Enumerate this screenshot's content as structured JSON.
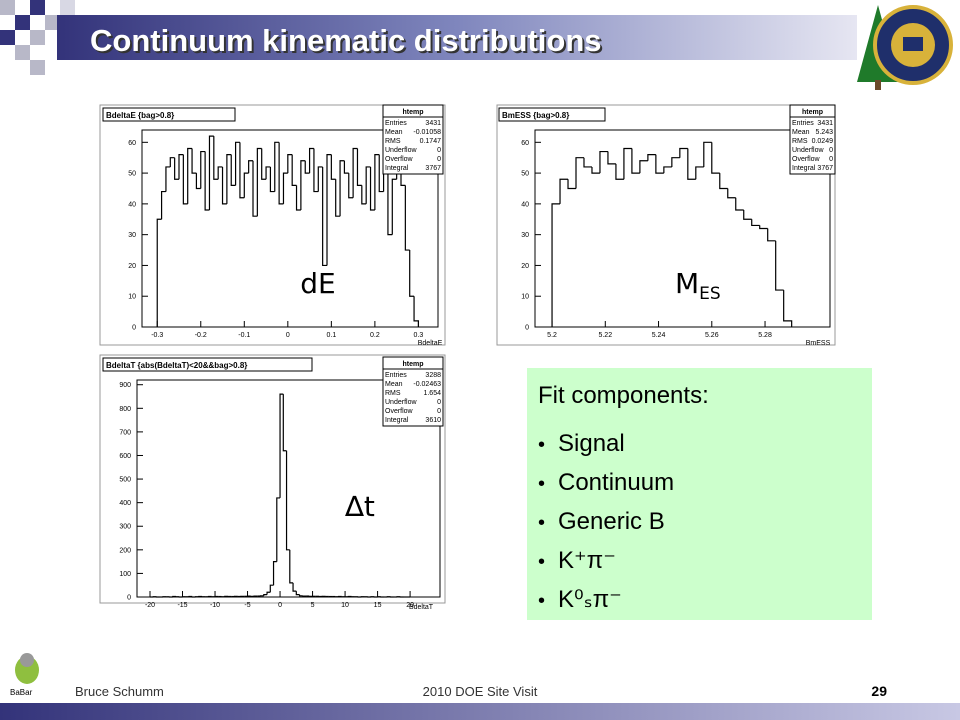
{
  "slide": {
    "title": "Continuum kinematic distributions",
    "logo_text": "BaBar",
    "footer": {
      "author": "Bruce Schumm",
      "event": "2010 DOE Site Visit",
      "page": 29
    }
  },
  "fit_box": {
    "heading": "Fit components:",
    "items": [
      "Signal",
      "Continuum",
      "Generic B",
      "K⁺π⁻",
      "K⁰ₛπ⁻"
    ]
  },
  "chart_data": [
    {
      "type": "histogram",
      "title": "BdeltaE {bag>0.8}",
      "x_label": "BdeltaE",
      "annotation": "dE",
      "color": "#000000",
      "stats": {
        "name": "htemp",
        "rows": [
          {
            "label": "Entries",
            "value": 3431
          },
          {
            "label": "Mean",
            "value": -0.01058
          },
          {
            "label": "RMS",
            "value": 0.1747
          },
          {
            "label": "Underflow",
            "value": 0
          },
          {
            "label": "Overflow",
            "value": 0
          },
          {
            "label": "Integral",
            "value": 3767
          }
        ]
      },
      "bins": [
        -0.3,
        -0.29,
        -0.28,
        -0.27,
        -0.26,
        -0.25,
        -0.24,
        -0.23,
        -0.22,
        -0.21,
        -0.2,
        -0.19,
        -0.18,
        -0.17,
        -0.16,
        -0.15,
        -0.14,
        -0.13,
        -0.12,
        -0.11,
        -0.1,
        -0.09,
        -0.08,
        -0.07,
        -0.06,
        -0.05,
        -0.04,
        -0.03,
        -0.02,
        -0.01,
        0,
        0.01,
        0.02,
        0.03,
        0.04,
        0.05,
        0.06,
        0.07,
        0.08,
        0.09,
        0.1,
        0.11,
        0.12,
        0.13,
        0.14,
        0.15,
        0.16,
        0.17,
        0.18,
        0.19,
        0.2,
        0.21,
        0.22,
        0.23,
        0.24,
        0.25,
        0.26,
        0.27,
        0.28,
        0.29,
        0.3
      ],
      "values": [
        35,
        44,
        52,
        55,
        48,
        56,
        40,
        58,
        50,
        45,
        57,
        38,
        62,
        48,
        52,
        40,
        56,
        46,
        60,
        42,
        50,
        54,
        36,
        58,
        48,
        52,
        44,
        60,
        40,
        50,
        56,
        46,
        38,
        54,
        50,
        58,
        44,
        52,
        20,
        56,
        48,
        36,
        54,
        50,
        42,
        58,
        46,
        40,
        52,
        38,
        56,
        44,
        50,
        30,
        48,
        54,
        46,
        25,
        10,
        2
      ],
      "xlim": [
        -0.335,
        0.345
      ],
      "ylim": [
        0,
        64
      ],
      "xticks": [
        -0.3,
        -0.2,
        -0.1,
        0,
        0.1,
        0.2,
        0.3
      ],
      "yticks": [
        0,
        10,
        20,
        30,
        40,
        50,
        60
      ]
    },
    {
      "type": "histogram",
      "title": "BmESS {bag>0.8}",
      "x_label": "BmESS",
      "annotation": {
        "text": "M",
        "subscript": "ES"
      },
      "color": "#000000",
      "stats": {
        "name": "htemp",
        "rows": [
          {
            "label": "Entries",
            "value": 3431
          },
          {
            "label": "Mean",
            "value": 5.243
          },
          {
            "label": "RMS",
            "value": 0.0249
          },
          {
            "label": "Underflow",
            "value": 0
          },
          {
            "label": "Overflow",
            "value": 0
          },
          {
            "label": "Integral",
            "value": 3767
          }
        ]
      },
      "bins": [
        5.2,
        5.203,
        5.206,
        5.209,
        5.212,
        5.215,
        5.218,
        5.221,
        5.224,
        5.227,
        5.23,
        5.233,
        5.236,
        5.239,
        5.242,
        5.245,
        5.248,
        5.251,
        5.254,
        5.257,
        5.26,
        5.263,
        5.266,
        5.269,
        5.272,
        5.275,
        5.278,
        5.281,
        5.284,
        5.287,
        5.29
      ],
      "values": [
        40,
        48,
        45,
        55,
        52,
        50,
        57,
        53,
        48,
        58,
        50,
        54,
        56,
        50,
        52,
        55,
        58,
        48,
        52,
        60,
        50,
        45,
        42,
        38,
        35,
        33,
        32,
        28,
        12,
        2
      ],
      "xlim": [
        5.1936,
        5.3044
      ],
      "ylim": [
        0,
        64
      ],
      "xticks": [
        5.2,
        5.22,
        5.24,
        5.26,
        5.28
      ],
      "yticks": [
        0,
        10,
        20,
        30,
        40,
        50,
        60
      ]
    },
    {
      "type": "histogram",
      "title": "BdeltaT {abs(BdeltaT)<20&&bag>0.8}",
      "x_label": "BdeltaT",
      "annotation": "∆t",
      "color": "#000000",
      "stats": {
        "name": "htemp",
        "rows": [
          {
            "label": "Entries",
            "value": 3288
          },
          {
            "label": "Mean",
            "value": -0.02463
          },
          {
            "label": "RMS",
            "value": 1.654
          },
          {
            "label": "Underflow",
            "value": 0
          },
          {
            "label": "Overflow",
            "value": 0
          },
          {
            "label": "Integral",
            "value": 3610
          }
        ]
      },
      "bins": [
        -20,
        -19.5,
        -19,
        -18.5,
        -18,
        -17.5,
        -17,
        -16.5,
        -16,
        -15.5,
        -15,
        -14.5,
        -14,
        -13.5,
        -13,
        -12.5,
        -12,
        -11.5,
        -11,
        -10.5,
        -10,
        -9.5,
        -9,
        -8.5,
        -8,
        -7.5,
        -7,
        -6.5,
        -6,
        -5.5,
        -5,
        -4.5,
        -4,
        -3.5,
        -3,
        -2.5,
        -2,
        -1.5,
        -1,
        -0.5,
        0,
        0.5,
        1,
        1.5,
        2,
        2.5,
        3,
        3.5,
        4,
        4.5,
        5,
        5.5,
        6,
        6.5,
        7,
        7.5,
        8,
        8.5,
        9,
        9.5,
        10,
        10.5,
        11,
        11.5,
        12,
        12.5,
        13,
        13.5,
        14,
        14.5,
        15,
        15.5,
        16,
        16.5,
        17,
        17.5,
        18,
        18.5,
        19,
        19.5,
        20
      ],
      "values": [
        0,
        1,
        0,
        0,
        1,
        1,
        0,
        2,
        1,
        0,
        1,
        1,
        2,
        0,
        1,
        2,
        1,
        1,
        2,
        1,
        2,
        2,
        1,
        3,
        2,
        2,
        3,
        2,
        3,
        3,
        4,
        3,
        4,
        4,
        5,
        10,
        20,
        50,
        150,
        420,
        860,
        620,
        200,
        60,
        25,
        10,
        5,
        4,
        4,
        3,
        3,
        3,
        2,
        3,
        2,
        2,
        2,
        1,
        2,
        1,
        1,
        2,
        1,
        1,
        0,
        1,
        1,
        0,
        1,
        0,
        1,
        0,
        0,
        1,
        0,
        0,
        1,
        0,
        0,
        0
      ],
      "xlim": [
        -22,
        24.6
      ],
      "ylim": [
        0,
        920
      ],
      "xticks": [
        -20,
        -15,
        -10,
        -5,
        0,
        5,
        10,
        15,
        20
      ],
      "yticks": [
        0,
        100,
        200,
        300,
        400,
        500,
        600,
        700,
        800,
        900
      ]
    }
  ]
}
